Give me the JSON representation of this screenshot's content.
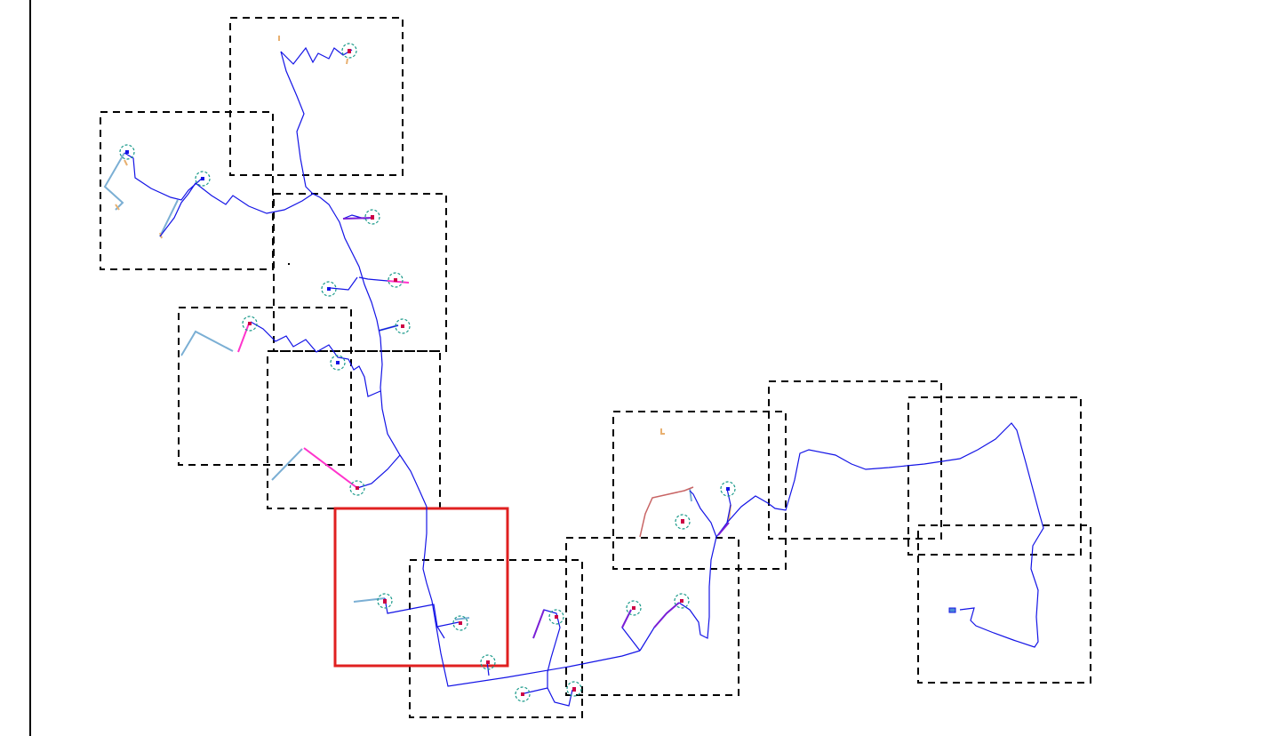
{
  "map": {
    "description_colors": {
      "main_network": "#1414e6",
      "service_line": "#7bafd4",
      "branch_pink": "#ff33cc",
      "branch_purple": "#7a1fd6",
      "endpoint": "#cc0044",
      "endpoint_ring": "#1a9a8a",
      "dashed_box": "#000000",
      "selected_box": "#e02020",
      "red_line": "#c86464",
      "orange_marks": "#e8b070"
    },
    "selected_tile_index": 0
  }
}
